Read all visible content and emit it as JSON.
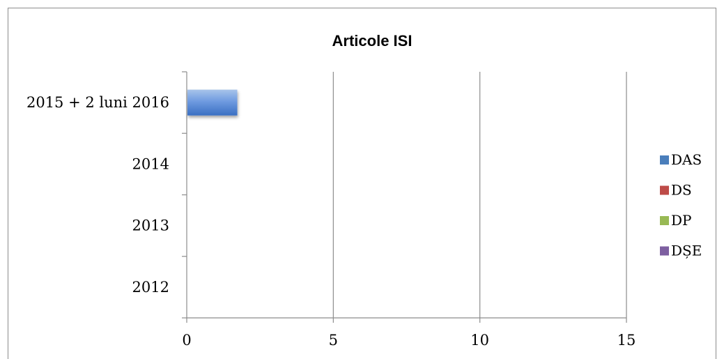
{
  "chart_data": {
    "type": "bar",
    "orientation": "horizontal",
    "title": "Articole ISI",
    "categories": [
      "2015 + 2 luni 2016",
      "2014",
      "2013",
      "2012"
    ],
    "series": [
      {
        "name": "DAS",
        "color": "#4a7ebb",
        "values": [
          1.7,
          0,
          0,
          0
        ]
      },
      {
        "name": "DS",
        "color": "#be4b48",
        "values": [
          0,
          0,
          0,
          0
        ]
      },
      {
        "name": "DP",
        "color": "#98b954",
        "values": [
          0,
          0,
          0,
          0
        ]
      },
      {
        "name": "DȘE",
        "color": "#7d5fa0",
        "values": [
          0,
          0,
          0,
          0
        ]
      }
    ],
    "xlim": [
      0,
      15
    ],
    "xticks": [
      "0",
      "5",
      "10",
      "15"
    ],
    "grid": "vertical",
    "legend_position": "right"
  }
}
